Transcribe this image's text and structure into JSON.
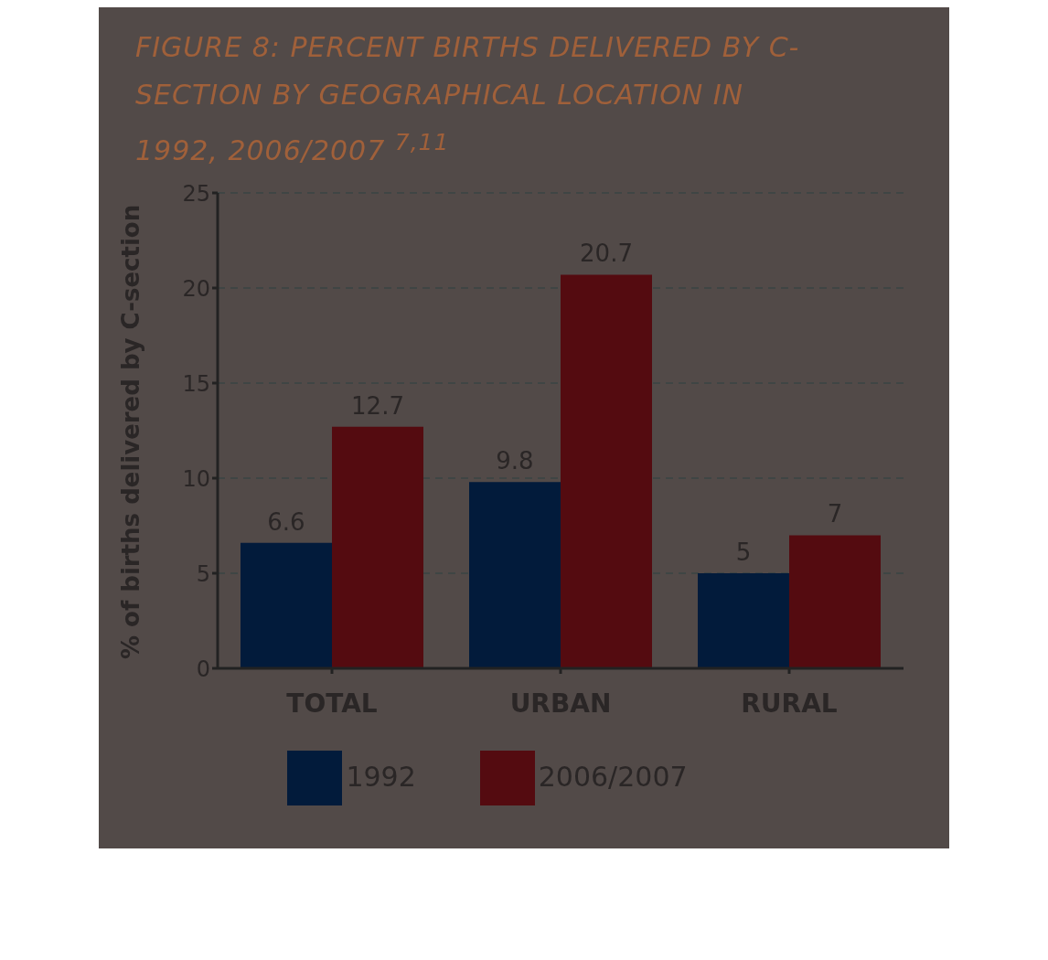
{
  "chart_data": {
    "type": "bar",
    "title": "FIGURE 8: PERCENT BIRTHS DELIVERED BY C-SECTION BY GEOGRAPHICAL LOCATION IN 1992, 2006/2007 $^{7,11}$",
    "ylabel": "% of births delivered by C-section",
    "categories": [
      "TOTAL",
      "URBAN",
      "RURAL"
    ],
    "series": [
      {
        "name": "1992",
        "color": "#021b3b",
        "values": [
          6.6,
          9.8,
          5
        ]
      },
      {
        "name": "2006/2007",
        "color": "#540b10",
        "values": [
          12.7,
          20.7,
          7
        ]
      }
    ],
    "ylim": [
      0,
      25
    ],
    "yticks": [
      0,
      5,
      10,
      15,
      20,
      25
    ],
    "grid": "y",
    "legend": "bottom",
    "data_labels": true
  }
}
